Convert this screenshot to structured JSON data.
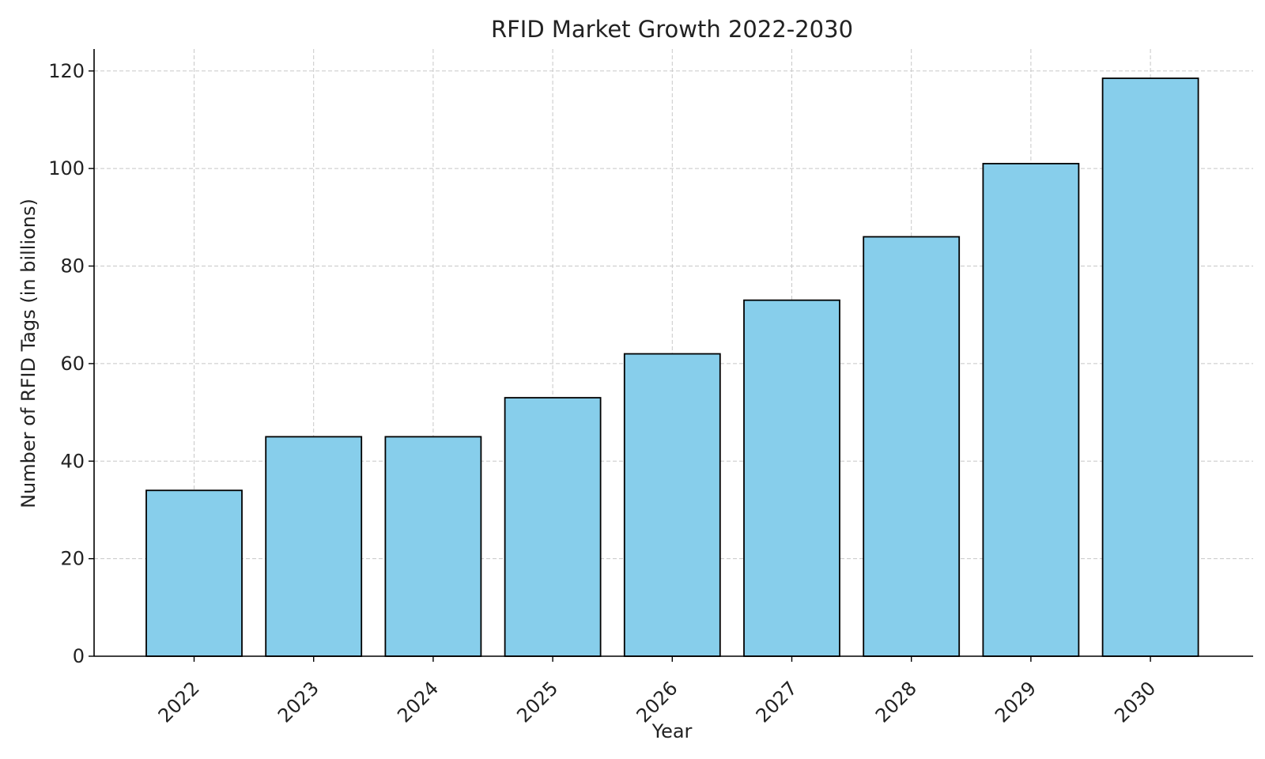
{
  "chart_data": {
    "type": "bar",
    "title": "RFID Market Growth 2022-2030",
    "xlabel": "Year",
    "ylabel": "Number of RFID Tags (in billions)",
    "categories": [
      "2022",
      "2023",
      "2024",
      "2025",
      "2026",
      "2027",
      "2028",
      "2029",
      "2030"
    ],
    "values": [
      34,
      45,
      45,
      53,
      62,
      73,
      86,
      101,
      118.5
    ],
    "ylim": [
      0,
      124.5
    ],
    "yticks": [
      0,
      20,
      40,
      60,
      80,
      100,
      120
    ],
    "grid": true,
    "legend": "none",
    "bar_color": "#87CEEB",
    "edge_color": "#000000"
  }
}
